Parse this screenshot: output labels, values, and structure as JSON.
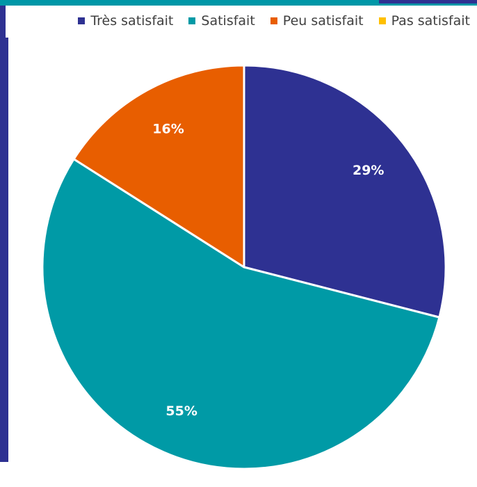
{
  "chart_data": {
    "type": "pie",
    "legend_position": "top-right",
    "categories": [
      "Très satisfait",
      "Satisfait",
      "Peu satisfait",
      "Pas satisfait"
    ],
    "values": [
      29,
      55,
      16,
      0
    ],
    "labels": [
      "29%",
      "55%",
      "16%",
      ""
    ],
    "colors": [
      "#2e3192",
      "#009aa6",
      "#e85e00",
      "#ffc000"
    ]
  }
}
